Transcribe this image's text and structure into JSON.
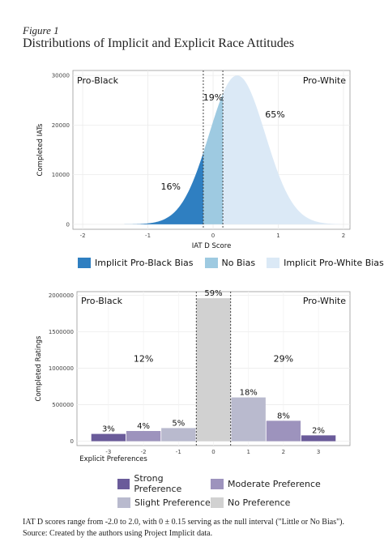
{
  "figure": {
    "label": "Figure 1",
    "title": "Distributions of Implicit and Explicit Race Attitudes",
    "footnote": "IAT D scores range from -2.0 to 2.0, with 0 ± 0.15 serving as the null interval (\"Little or No Bias\"). Source: Created by the authors using Project Implicit data."
  },
  "colors": {
    "implicit_pro_black": "#2f7fc1",
    "no_bias": "#9ecae1",
    "implicit_pro_white": "#dbe9f6",
    "strong": "#6a5b9a",
    "moderate": "#9d93bd",
    "slight": "#b9bace",
    "no_pref": "#d1d1d1"
  },
  "chart_data": [
    {
      "type": "area",
      "corner_left": "Pro-Black",
      "corner_right": "Pro-White",
      "xlabel": "IAT D Score",
      "ylabel": "Completed IATs",
      "xlim": [
        -2.15,
        2.1
      ],
      "ylim": [
        -1000,
        31000
      ],
      "x_ticks": [
        -2,
        -1,
        0,
        1,
        2
      ],
      "y_ticks": [
        0,
        10000,
        20000,
        30000
      ],
      "y_tick_labels": [
        "0",
        "10000",
        "20000",
        "30000"
      ],
      "null_interval": [
        -0.15,
        0.15
      ],
      "distribution": {
        "mean": 0.37,
        "sd": 0.43,
        "peak": 30000,
        "x_min": -2.1,
        "x_max": 1.95
      },
      "regions": [
        {
          "name": "Implicit Pro-Black Bias",
          "percent": "16%",
          "label_x": -0.65,
          "label_y": 7000
        },
        {
          "name": "No Bias",
          "percent": "19%",
          "label_x": 0.0,
          "label_y": 25000
        },
        {
          "name": "Implicit Pro-White Bias",
          "percent": "65%",
          "label_x": 0.95,
          "label_y": 21500
        }
      ],
      "grid": true,
      "legend_position": "bottom"
    },
    {
      "type": "bar",
      "corner_left": "Pro-Black",
      "corner_right": "Pro-White",
      "xlabel": "Explicit Preferences",
      "ylabel": "Completed Ratings",
      "categories": [
        "-3",
        "-2",
        "-1",
        "0",
        "1",
        "2",
        "3"
      ],
      "values": [
        100000,
        140000,
        180000,
        1960000,
        600000,
        280000,
        80000
      ],
      "bar_labels": [
        "3%",
        "4%",
        "5%",
        "59%",
        "18%",
        "8%",
        "2%"
      ],
      "bar_classes": [
        "strong",
        "moderate",
        "slight",
        "no_pref",
        "slight",
        "moderate",
        "strong"
      ],
      "ylim": [
        -60000,
        2050000
      ],
      "y_ticks": [
        0,
        500000,
        1000000,
        1500000,
        2000000
      ],
      "y_tick_labels": [
        "0",
        "500000",
        "1000000",
        "1500000",
        "2000000"
      ],
      "group_labels": [
        {
          "text": "12%",
          "x": -2.0,
          "y": 1000000
        },
        {
          "text": "29%",
          "x": 2.0,
          "y": 1000000
        }
      ],
      "grid": true,
      "legend_position": "bottom"
    }
  ],
  "legend1": [
    {
      "label": "Implicit Pro-Black Bias",
      "color_key": "implicit_pro_black"
    },
    {
      "label": "No Bias",
      "color_key": "no_bias"
    },
    {
      "label": "Implicit Pro-White Bias",
      "color_key": "implicit_pro_white"
    }
  ],
  "legend2": [
    {
      "label": "Strong Preference",
      "color_key": "strong"
    },
    {
      "label": "Moderate Preference",
      "color_key": "moderate"
    },
    {
      "label": "Slight Preference",
      "color_key": "slight"
    },
    {
      "label": "No Preference",
      "color_key": "no_pref"
    }
  ]
}
